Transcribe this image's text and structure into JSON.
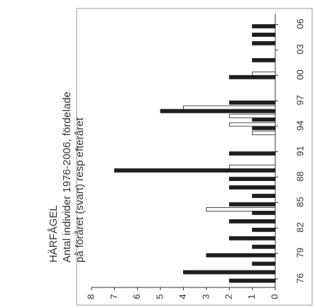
{
  "chart_data": {
    "type": "bar",
    "rotated": true,
    "title": "HÄRFÅGEL",
    "subtitle": [
      "Antal individer 1976-2006, fördelade",
      "på föråret (svart) resp efteråret"
    ],
    "categories": [
      "76",
      null,
      null,
      "79",
      null,
      null,
      "82",
      null,
      null,
      "85",
      null,
      null,
      "88",
      null,
      null,
      "91",
      null,
      null,
      "94",
      null,
      null,
      "97",
      null,
      null,
      "00",
      null,
      null,
      "03",
      null,
      null,
      "06"
    ],
    "series": [
      {
        "color": "#1e1e1e",
        "values": [
          2,
          4,
          1,
          3,
          1,
          2,
          1,
          2,
          1,
          2,
          1,
          2,
          2,
          7,
          0,
          2,
          0,
          0,
          1,
          1,
          5,
          2,
          0,
          0,
          2,
          0,
          1,
          0,
          1,
          1,
          1
        ]
      },
      {
        "color": "#ffffff",
        "values": [
          0,
          0,
          0,
          0,
          0,
          0,
          0,
          0,
          3,
          0,
          0,
          0,
          0,
          2,
          0,
          0,
          0,
          1,
          2,
          2,
          4,
          0,
          0,
          0,
          1,
          0,
          0,
          0,
          0,
          0,
          0
        ]
      }
    ],
    "ylim": [
      0,
      8
    ],
    "yticks": [
      0,
      1,
      2,
      3,
      4,
      5,
      6,
      7,
      8
    ]
  }
}
